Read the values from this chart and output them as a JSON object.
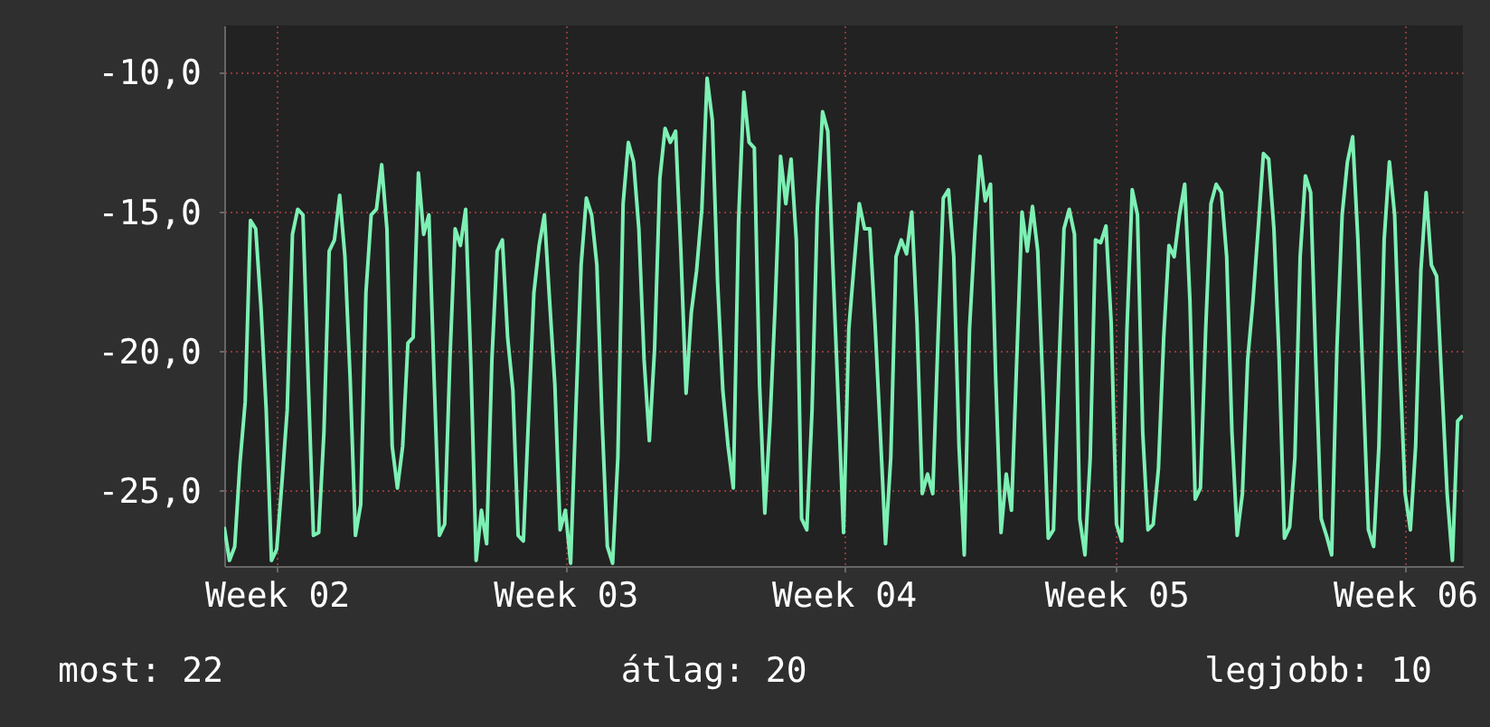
{
  "chart_data": {
    "type": "line",
    "categories": [
      null,
      null,
      null,
      null,
      null,
      null,
      null,
      null,
      null,
      null,
      "Week 02",
      null,
      null,
      null,
      null,
      null,
      null,
      null,
      null,
      null,
      null,
      null,
      null,
      null,
      null,
      null,
      null,
      null,
      null,
      null,
      null,
      null,
      null,
      null,
      null,
      null,
      null,
      null,
      null,
      null,
      null,
      null,
      null,
      null,
      null,
      null,
      null,
      null,
      null,
      null,
      null,
      null,
      null,
      null,
      null,
      null,
      null,
      null,
      null,
      null,
      null,
      null,
      null,
      null,
      null,
      "Week 03",
      null,
      null,
      null,
      null,
      null,
      null,
      null,
      null,
      null,
      null,
      null,
      null,
      null,
      null,
      null,
      null,
      null,
      null,
      null,
      null,
      null,
      null,
      null,
      null,
      null,
      null,
      null,
      null,
      null,
      null,
      null,
      null,
      null,
      null,
      null,
      null,
      null,
      null,
      null,
      null,
      null,
      null,
      null,
      null,
      null,
      null,
      null,
      null,
      null,
      null,
      null,
      null,
      "Week 04",
      null,
      null,
      null,
      null,
      null,
      null,
      null,
      null,
      null,
      null,
      null,
      null,
      null,
      null,
      null,
      null,
      null,
      null,
      null,
      null,
      null,
      null,
      null,
      null,
      null,
      null,
      null,
      null,
      null,
      null,
      null,
      null,
      null,
      null,
      null,
      null,
      null,
      null,
      null,
      null,
      null,
      null,
      null,
      null,
      null,
      null,
      null,
      null,
      null,
      null,
      null,
      "Week 05",
      null,
      null,
      null,
      null,
      null,
      null,
      null,
      null,
      null,
      null,
      null,
      null,
      null,
      null,
      null,
      null,
      null,
      null,
      null,
      null,
      null,
      null,
      null,
      null,
      null,
      null,
      null,
      null,
      null,
      null,
      null,
      null,
      null,
      null,
      null,
      null,
      null,
      null,
      null,
      null,
      null,
      null,
      null,
      null,
      null,
      null,
      null,
      null,
      null,
      null,
      null,
      null,
      null,
      null,
      "Week 06",
      null,
      null,
      null,
      null,
      null,
      null,
      null,
      null,
      null,
      null,
      null
    ],
    "series": [
      {
        "color": "#7df0b4",
        "values": [
          -26.3,
          -27.5,
          -27.0,
          -24.0,
          -21.8,
          -15.3,
          -15.6,
          -18.4,
          -22.1,
          -27.5,
          -27.1,
          -24.7,
          -22.1,
          -15.8,
          -14.9,
          -15.1,
          -21.0,
          -26.6,
          -26.5,
          -22.9,
          -16.4,
          -16.0,
          -14.4,
          -16.6,
          -21.0,
          -26.6,
          -25.5,
          -17.9,
          -15.1,
          -14.9,
          -13.3,
          -15.6,
          -23.4,
          -24.9,
          -23.4,
          -19.7,
          -19.5,
          -13.6,
          -15.8,
          -15.1,
          -21.0,
          -26.6,
          -26.2,
          -20.3,
          -15.6,
          -16.2,
          -14.9,
          -20.5,
          -27.5,
          -25.7,
          -26.9,
          -20.3,
          -16.4,
          -16.0,
          -19.5,
          -21.4,
          -26.6,
          -26.8,
          -22.3,
          -17.9,
          -16.2,
          -15.1,
          -18.2,
          -21.2,
          -26.4,
          -25.7,
          -27.6,
          -22.1,
          -16.9,
          -14.5,
          -15.1,
          -16.9,
          -22.5,
          -27.0,
          -27.6,
          -23.8,
          -14.7,
          -12.5,
          -13.2,
          -15.6,
          -20.3,
          -23.2,
          -19.9,
          -13.8,
          -12.0,
          -12.5,
          -12.1,
          -16.4,
          -21.5,
          -18.6,
          -17.1,
          -14.9,
          -10.2,
          -11.7,
          -17.5,
          -21.4,
          -23.4,
          -24.9,
          -15.3,
          -10.7,
          -12.5,
          -12.7,
          -21.2,
          -25.8,
          -22.5,
          -18.2,
          -13.0,
          -14.7,
          -13.1,
          -16.0,
          -26.0,
          -26.4,
          -22.1,
          -14.9,
          -11.4,
          -12.1,
          -17.1,
          -21.8,
          -26.5,
          -19.2,
          -16.9,
          -14.7,
          -15.6,
          -15.6,
          -19.0,
          -22.9,
          -26.9,
          -23.8,
          -16.6,
          -16.0,
          -16.5,
          -15.0,
          -19.0,
          -25.1,
          -24.4,
          -25.1,
          -19.5,
          -14.5,
          -14.2,
          -16.6,
          -23.4,
          -27.3,
          -19.2,
          -15.8,
          -13.0,
          -14.6,
          -14.0,
          -21.0,
          -26.5,
          -24.4,
          -25.7,
          -20.3,
          -15.0,
          -16.4,
          -14.8,
          -16.4,
          -21.4,
          -26.7,
          -26.4,
          -20.8,
          -15.6,
          -14.9,
          -15.8,
          -26.0,
          -27.3,
          -23.8,
          -16.0,
          -16.1,
          -15.5,
          -19.0,
          -26.2,
          -26.8,
          -19.2,
          -14.2,
          -15.1,
          -22.9,
          -26.4,
          -26.2,
          -24.2,
          -19.5,
          -16.2,
          -16.6,
          -15.1,
          -14.0,
          -18.2,
          -25.3,
          -24.9,
          -19.2,
          -14.7,
          -14.0,
          -14.3,
          -16.6,
          -22.9,
          -26.6,
          -25.1,
          -20.3,
          -18.2,
          -15.6,
          -12.9,
          -13.1,
          -15.6,
          -20.3,
          -26.7,
          -26.3,
          -23.8,
          -16.6,
          -13.7,
          -14.3,
          -20.5,
          -26.0,
          -26.6,
          -27.3,
          -19.9,
          -15.1,
          -13.2,
          -12.3,
          -16.0,
          -21.2,
          -26.4,
          -27.0,
          -23.4,
          -16.0,
          -13.2,
          -15.1,
          -20.5,
          -25.1,
          -26.4,
          -23.4,
          -17.1,
          -14.3,
          -16.9,
          -17.3,
          -21.2,
          -25.1,
          -27.5,
          -22.5,
          -22.3
        ]
      }
    ],
    "ylim": [
      -27.7,
      -8.3
    ],
    "yticks": [
      {
        "value": -25,
        "label": "-25,0"
      },
      {
        "value": -20,
        "label": "-20,0"
      },
      {
        "value": -15,
        "label": "-15,0"
      },
      {
        "value": -10,
        "label": "-10,0"
      }
    ],
    "grid": true,
    "annotations": [
      "most: 22",
      "átlag: 20",
      "legjobb: 10"
    ]
  }
}
